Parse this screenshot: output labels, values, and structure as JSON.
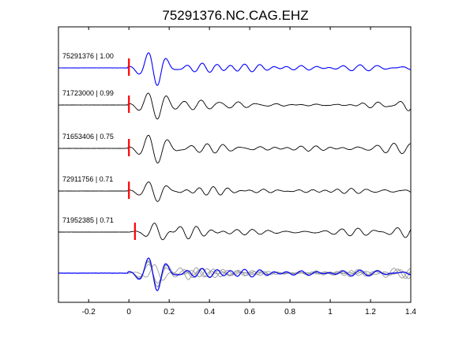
{
  "chart_data": {
    "type": "line",
    "title": "75291376.NC.CAG.EHZ",
    "xlabel": "",
    "ylabel": "",
    "xlim": [
      -0.35,
      1.4
    ],
    "xticks": [
      -0.2,
      0,
      0.2,
      0.4,
      0.6,
      0.8,
      1,
      1.2,
      1.4
    ],
    "xtick_labels": [
      "-0.2",
      "0",
      "0.2",
      "0.4",
      "0.6",
      "0.8",
      "1",
      "1.2",
      "1.4"
    ],
    "grid": false,
    "pick_time": 0.0,
    "colors": {
      "reference": "#0000ff",
      "other": "#000000",
      "overlay_other": "#8c8c8c",
      "pick": "#ff0000"
    },
    "series": [
      {
        "label": "75291376 | 1.00",
        "pick": 0.0,
        "color": "#0000ff"
      },
      {
        "label": "71723000 | 0.99",
        "pick": 0.0,
        "color": "#000000"
      },
      {
        "label": "71653406 | 0.75",
        "pick": 0.0,
        "color": "#000000"
      },
      {
        "label": "72911756 | 0.71",
        "pick": 0.0,
        "color": "#000000"
      },
      {
        "label": "71952385 | 0.71",
        "pick": 0.03,
        "color": "#000000"
      }
    ],
    "overlay": {
      "label": ""
    }
  }
}
